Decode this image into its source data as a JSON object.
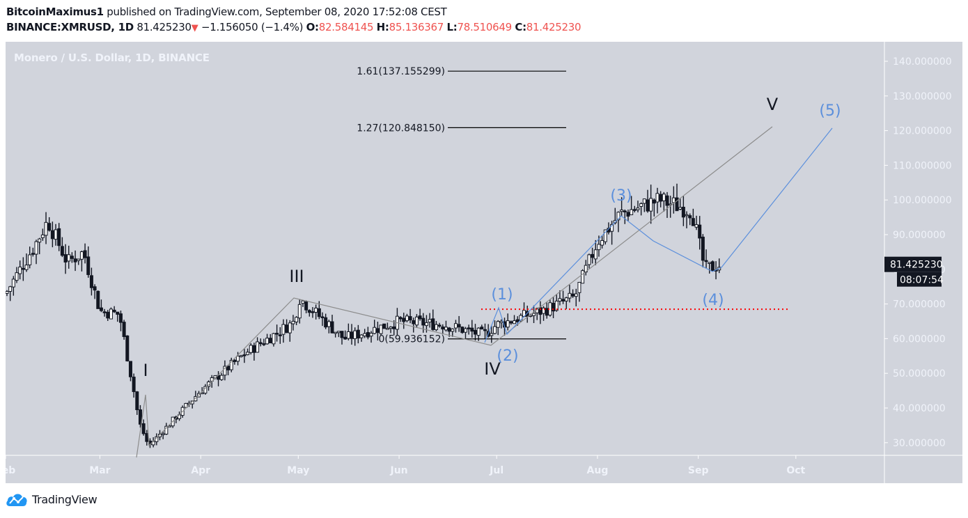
{
  "header": {
    "author": "BitcoinMaximus1",
    "published_text": " published on TradingView.com, September 08, 2020 17:52:08 CEST",
    "symbol": "BINANCE:XMRUSD, 1D",
    "last_price": "81.425230",
    "change_icon": "down-triangle-icon",
    "change": "−1.156050 (−1.4%)",
    "open_label": "O:",
    "open": "82.584145",
    "high_label": "H:",
    "high": "85.136367",
    "low_label": "L:",
    "low": "78.510649",
    "close_label": "C:",
    "close": "81.425230"
  },
  "chart": {
    "title": "Monero / U.S. Dollar, 1D, BINANCE",
    "price_tag": "81.425230",
    "countdown": "08:07:54",
    "colors": {
      "background": "#d1d4dc",
      "axis_text": "#f0f3fa",
      "candle": "#131722",
      "elliott_major": "#8c8c8c",
      "elliott_minor": "#5b8fdc",
      "support_line": "#ff0000",
      "fib_line": "#000000"
    }
  },
  "footer": {
    "logo_icon": "tradingview-cloud-icon",
    "brand": "TradingView"
  },
  "chart_data": {
    "type": "candlestick",
    "title": "Monero / U.S. Dollar, 1D, BINANCE",
    "symbol": "BINANCE:XMRUSD",
    "interval": "1D",
    "xlabel": "",
    "ylabel": "",
    "x_ticks": [
      "Feb",
      "Mar",
      "Apr",
      "May",
      "Jun",
      "Jul",
      "Aug",
      "Sep",
      "Oct"
    ],
    "y_ticks": [
      30,
      40,
      50,
      60,
      70,
      80,
      90,
      100,
      110,
      120,
      130,
      140
    ],
    "ylim": [
      25,
      145
    ],
    "y_tick_format": "6 decimals",
    "last_price": 81.42523,
    "ohlc_last": {
      "open": 82.584145,
      "high": 85.136367,
      "low": 78.510649,
      "close": 81.42523
    },
    "approx_path": [
      {
        "date": "2020-02-01",
        "close": 73
      },
      {
        "date": "2020-02-10",
        "close": 87
      },
      {
        "date": "2020-02-14",
        "close": 94
      },
      {
        "date": "2020-02-20",
        "close": 82
      },
      {
        "date": "2020-02-25",
        "close": 85
      },
      {
        "date": "2020-03-01",
        "close": 68
      },
      {
        "date": "2020-03-07",
        "close": 67
      },
      {
        "date": "2020-03-12",
        "close": 42
      },
      {
        "date": "2020-03-13",
        "close": 36
      },
      {
        "date": "2020-03-16",
        "close": 29
      },
      {
        "date": "2020-04-01",
        "close": 45
      },
      {
        "date": "2020-04-15",
        "close": 56
      },
      {
        "date": "2020-04-30",
        "close": 65
      },
      {
        "date": "2020-05-01",
        "close": 72
      },
      {
        "date": "2020-05-15",
        "close": 60
      },
      {
        "date": "2020-06-01",
        "close": 65
      },
      {
        "date": "2020-06-15",
        "close": 64
      },
      {
        "date": "2020-06-27",
        "close": 61
      },
      {
        "date": "2020-07-01",
        "close": 64
      },
      {
        "date": "2020-07-15",
        "close": 68
      },
      {
        "date": "2020-07-25",
        "close": 72
      },
      {
        "date": "2020-08-01",
        "close": 88
      },
      {
        "date": "2020-08-08",
        "close": 96
      },
      {
        "date": "2020-08-20",
        "close": 100
      },
      {
        "date": "2020-08-30",
        "close": 97
      },
      {
        "date": "2020-09-03",
        "close": 80
      },
      {
        "date": "2020-09-08",
        "close": 81.43
      }
    ],
    "annotations": {
      "fibonacci_levels": [
        {
          "label": "1.61(137.155299)",
          "ratio": 1.61,
          "price": 137.155299
        },
        {
          "label": "1.27(120.848150)",
          "ratio": 1.27,
          "price": 120.84815
        },
        {
          "label": "0(59.936152)",
          "ratio": 0,
          "price": 59.936152
        }
      ],
      "support_line": {
        "price": 68.5,
        "style": "red dotted"
      },
      "elliott_major_waves": [
        {
          "label": "I",
          "date": "2020-03-16",
          "price": 29
        },
        {
          "label": "III",
          "date": "2020-04-30",
          "price": 71
        },
        {
          "label": "IV",
          "date": "2020-06-27",
          "price": 58
        },
        {
          "label": "V",
          "date": "2020-09-23",
          "price": 121
        }
      ],
      "elliott_minor_waves": [
        {
          "label": "(1)",
          "date": "2020-07-01",
          "price": 68
        },
        {
          "label": "(2)",
          "date": "2020-07-06",
          "price": 62
        },
        {
          "label": "(3)",
          "date": "2020-08-10",
          "price": 95
        },
        {
          "label": "(4)",
          "date": "2020-09-04",
          "price": 78
        },
        {
          "label": "(5)",
          "date": "2020-10-12",
          "price": 120
        }
      ]
    }
  }
}
